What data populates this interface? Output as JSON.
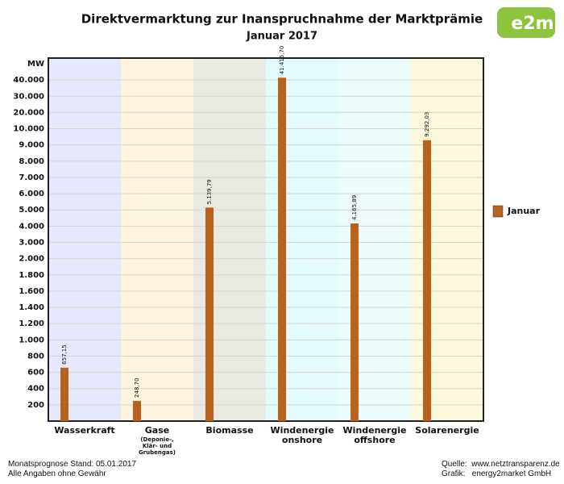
{
  "chart_data": {
    "type": "bar",
    "title": "Direktvermarktung zur Inanspruchnahme der Marktprämie",
    "subtitle": "Januar 2017",
    "y_label": "MW",
    "logo": "e2m",
    "categories": [
      "Wasserkraft",
      "Gase",
      "Biomasse",
      "Windenergie onshore",
      "Windenergie offshore",
      "Solarenergie"
    ],
    "category_subtitles": [
      null,
      "(Deponie-, Klär- und Grubengas)",
      null,
      null,
      null,
      null
    ],
    "band_colors": [
      "#e6e9fb",
      "#fcf3e1",
      "#e9ebe2",
      "#e2fafa",
      "#ecfbfb",
      "#fbf8dc"
    ],
    "series": [
      {
        "name": "Januar",
        "color": "#b8621e",
        "values": [
          657.15,
          248.7,
          5139.79,
          41415.7,
          4165.89,
          9292.03
        ],
        "value_labels": [
          "657,15",
          "248,70",
          "5.139,79",
          "41.415,70",
          "4.165,89",
          "9.292,03"
        ]
      }
    ],
    "ylim": [
      0,
      50000
    ],
    "yticks": [
      200,
      400,
      600,
      800,
      {
        "value": 1000,
        "label": "1.000"
      },
      {
        "value": 1200,
        "label": "1.200"
      },
      {
        "value": 1400,
        "label": "1.400"
      },
      {
        "value": 1600,
        "label": "1.600"
      },
      {
        "value": 1800,
        "label": "1.800"
      },
      {
        "value": 2000,
        "label": "2.000"
      },
      {
        "value": 3000,
        "label": "3.000"
      },
      {
        "value": 4000,
        "label": "4.000"
      },
      {
        "value": 5000,
        "label": "5.000"
      },
      {
        "value": 6000,
        "label": "6.000"
      },
      {
        "value": 7000,
        "label": "7.000"
      },
      {
        "value": 8000,
        "label": "8.000"
      },
      {
        "value": 9000,
        "label": "9.000"
      },
      {
        "value": 10000,
        "label": "10.000"
      },
      {
        "value": 20000,
        "label": "20.000"
      },
      {
        "value": 30000,
        "label": "30.000"
      },
      {
        "value": 40000,
        "label": "40.000"
      }
    ],
    "grid": true,
    "legend": "right",
    "footer_left": [
      "Monatsprognose Stand: 05.01.2017",
      "Alle Angaben ohne Gewähr"
    ],
    "footer_right": [
      "Quelle:  www.netztransparenz.de",
      "Grafik:   energy2market GmbH"
    ]
  }
}
